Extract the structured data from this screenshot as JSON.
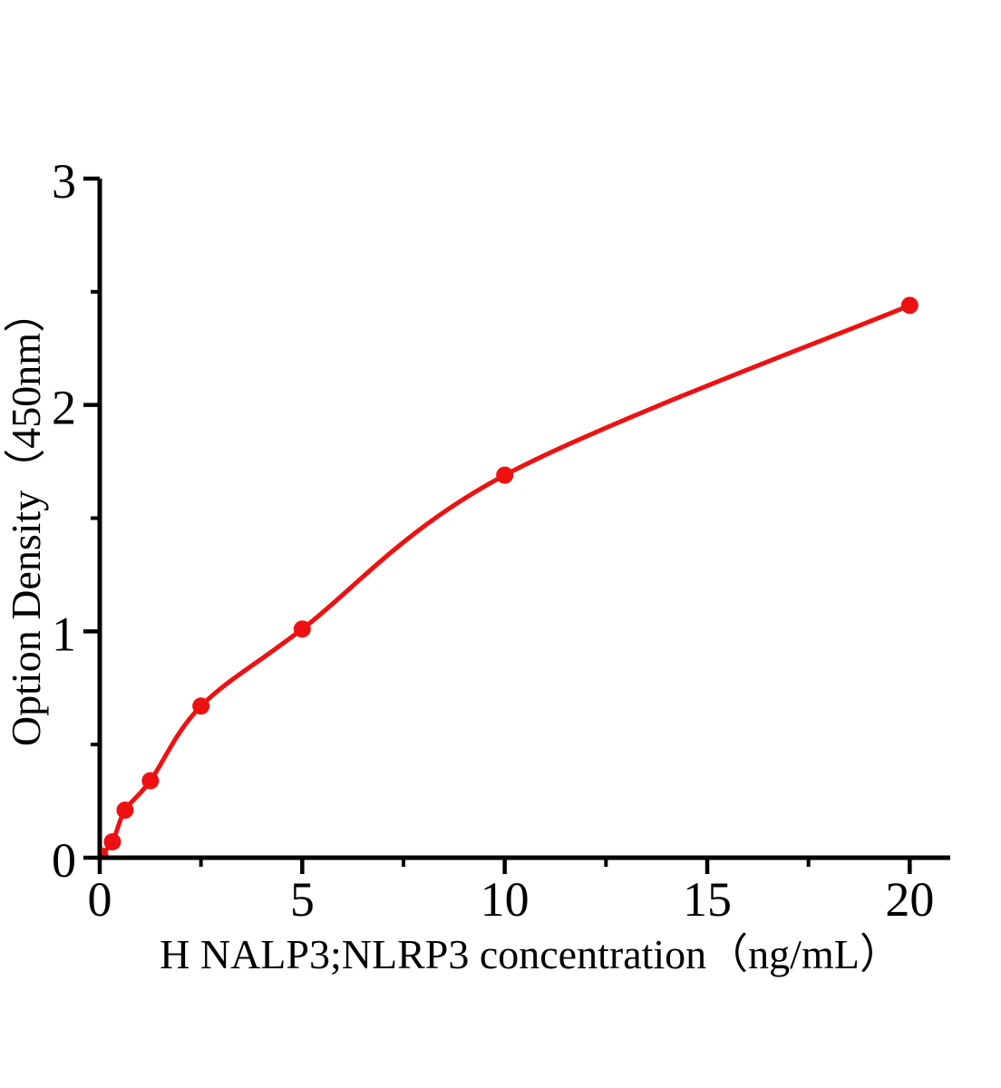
{
  "chart_data": {
    "type": "scatter",
    "title": "",
    "xlabel": "H NALP3;NLRP3 concentration（ng/mL）",
    "ylabel": "Option Density（450nm）",
    "x": [
      0,
      0.313,
      0.625,
      1.25,
      2.5,
      5,
      10,
      20
    ],
    "y": [
      0.01,
      0.07,
      0.21,
      0.34,
      0.67,
      1.01,
      1.69,
      2.44
    ],
    "xlim": [
      0,
      21
    ],
    "ylim": [
      0,
      3
    ],
    "x_ticks_major": [
      0,
      5,
      10,
      15,
      20
    ],
    "x_ticks_minor": [
      2.5,
      7.5,
      12.5,
      17.5
    ],
    "y_ticks_major": [
      0,
      1,
      2,
      3
    ],
    "y_ticks_minor": [
      0.5,
      1.5,
      2.5
    ],
    "grid": false,
    "legend": "none",
    "line": "smooth-fit",
    "marker": "filled-circle",
    "colors": {
      "series": "#ee1111",
      "axis": "#000000",
      "background": "#ffffff"
    }
  }
}
